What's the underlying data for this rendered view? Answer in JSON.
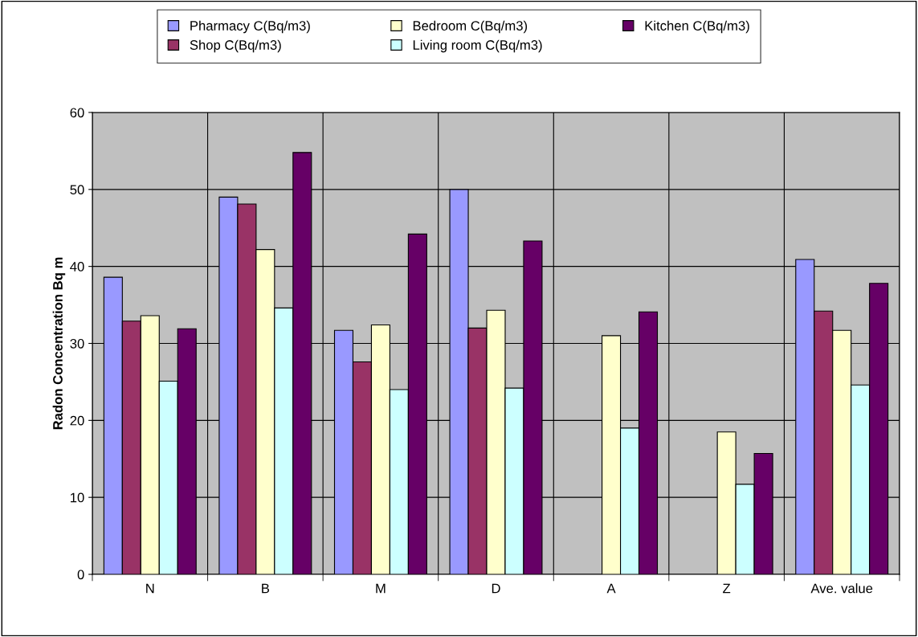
{
  "chart_data": {
    "type": "bar",
    "ylabel": "Radon Concentration Bq m",
    "categories": [
      "N",
      "B",
      "M",
      "D",
      "A",
      "Z",
      "Ave. value"
    ],
    "series": [
      {
        "name": "Pharmacy C(Bq/m3)",
        "color": "#9999ff",
        "values": [
          38.6,
          49.0,
          31.7,
          50.0,
          null,
          null,
          40.9
        ]
      },
      {
        "name": "Shop C(Bq/m3)",
        "color": "#993366",
        "values": [
          32.9,
          48.1,
          27.6,
          32.0,
          null,
          null,
          34.2
        ]
      },
      {
        "name": "Bedroom C(Bq/m3)",
        "color": "#ffffcc",
        "values": [
          33.6,
          42.2,
          32.4,
          34.3,
          31.0,
          18.5,
          31.7
        ]
      },
      {
        "name": "Living room C(Bq/m3)",
        "color": "#ccffff",
        "values": [
          25.1,
          34.6,
          24.0,
          24.2,
          19.0,
          11.7,
          24.6
        ]
      },
      {
        "name": "Kitchen C(Bq/m3)",
        "color": "#660066",
        "values": [
          31.9,
          54.8,
          44.2,
          43.3,
          34.1,
          15.7,
          37.8
        ]
      }
    ],
    "ylim": [
      0,
      60
    ],
    "yticks": [
      0,
      10,
      20,
      30,
      40,
      50,
      60
    ],
    "grid": true,
    "legend": "top"
  }
}
